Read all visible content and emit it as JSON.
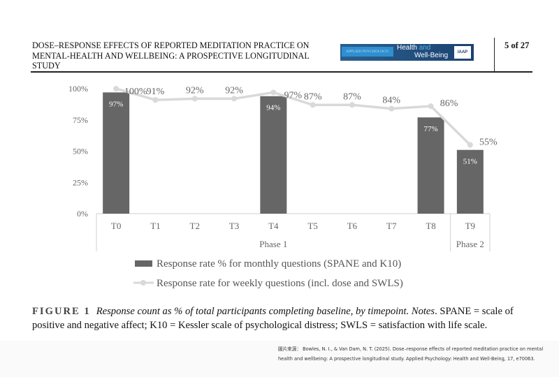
{
  "header": {
    "title": "DOSE–RESPONSE EFFECTS OF REPORTED MEDITATION PRACTICE ON MENTAL-HEALTH AND WELLBEING: A PROSPECTIVE LONGITUDINAL STUDY",
    "page": "5 of 27",
    "logo": {
      "prefix": "APPLIED PSYCHOLOGY:",
      "health": "Health",
      "and": "and",
      "wellbeing": "Well-Being",
      "org": "IAAP"
    }
  },
  "chart_data": {
    "type": "bar",
    "categories": [
      "T0",
      "T1",
      "T2",
      "T3",
      "T4",
      "T5",
      "T6",
      "T7",
      "T8",
      "T9"
    ],
    "groups": [
      {
        "label": "Phase 1",
        "span": 9
      },
      {
        "label": "Phase 2",
        "span": 1
      }
    ],
    "yticks": [
      "0%",
      "25%",
      "50%",
      "75%",
      "100%"
    ],
    "ylim": [
      0,
      100
    ],
    "series": [
      {
        "name": "Response rate % for monthly questions (SPANE and K10)",
        "kind": "bar",
        "color": "#666666",
        "values": [
          97,
          null,
          null,
          null,
          94,
          null,
          null,
          null,
          77,
          51
        ],
        "labels": [
          "97%",
          "",
          "",
          "",
          "94%",
          "",
          "",
          "",
          "77%",
          "51%"
        ]
      },
      {
        "name": "Response rate for weekly questions (incl. dose and SWLS)",
        "kind": "line",
        "color": "#d9d9d9",
        "values": [
          100,
          91,
          92,
          92,
          97,
          87,
          87,
          84,
          86,
          55
        ],
        "labels": [
          "100%",
          "91%",
          "92%",
          "92%",
          "97%",
          "87%",
          "87%",
          "84%",
          "86%",
          "55%"
        ]
      }
    ],
    "legend": "bottom"
  },
  "caption": {
    "figure": "FIGURE 1",
    "title": "Response count as % of total participants completing baseline, by timepoint. Notes",
    "text": ". SPANE = scale of positive and negative affect; K10 = Kessler scale of psychological distress; SWLS = satisfaction with life scale."
  },
  "source": "圖片來源： Bowles, N. I., & Van Dam, N. T. (2025). Dose–response effects of reported meditation practice on mental health and wellbeing: A prospective longitudinal study. Applied Psychology: Health and Well-Being, 17, e70063."
}
